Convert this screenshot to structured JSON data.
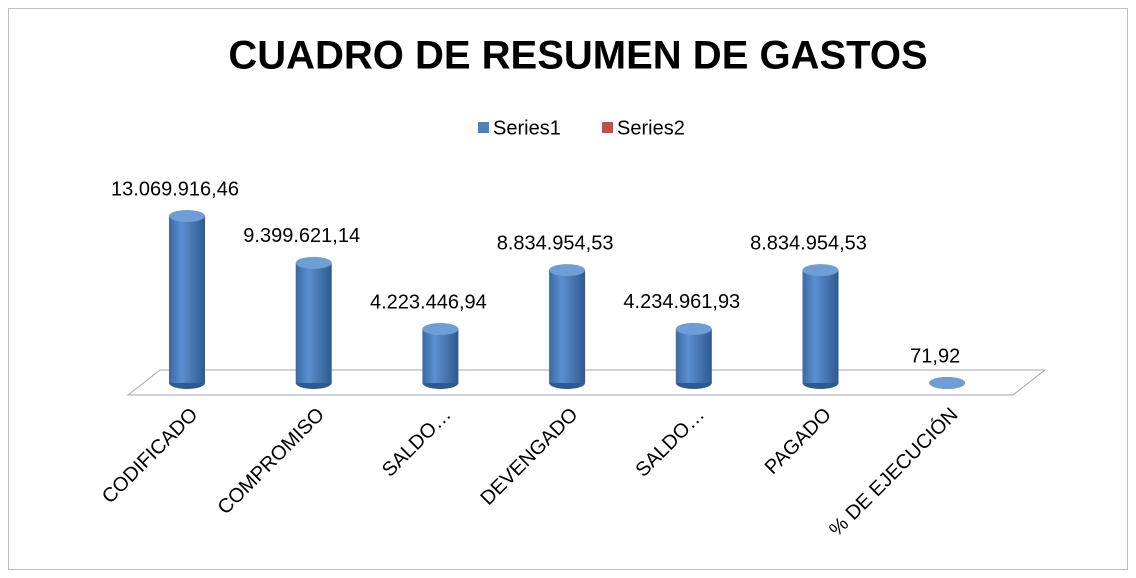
{
  "chart_data": {
    "type": "bar3d",
    "title": "CUADRO DE RESUMEN DE GASTOS",
    "categories": [
      "CODIFICADO",
      "COMPROMISO",
      "SALDO…",
      "DEVENGADO",
      "SALDO…",
      "PAGADO",
      "% DE EJECUCIÓN"
    ],
    "series": [
      {
        "name": "Series1",
        "color": "#4f81bd",
        "values": [
          13069916.46,
          9399621.14,
          4223446.94,
          8834954.53,
          4234961.93,
          8834954.53,
          71.92
        ],
        "value_labels": [
          "13.069.916,46",
          "9.399.621,14",
          "4.223.446,94",
          "8.834.954,53",
          "4.234.961,93",
          "8.834.954,53",
          "71,92"
        ]
      },
      {
        "name": "Series2",
        "color": "#c0504d",
        "values": [
          null,
          null,
          null,
          null,
          null,
          null,
          null
        ]
      }
    ],
    "legend": "top"
  }
}
